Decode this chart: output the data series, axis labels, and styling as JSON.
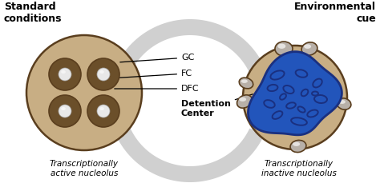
{
  "background_color": "#ffffff",
  "title_left": "Standard\nconditions",
  "title_right": "Environmental\ncue",
  "label_active": "Transcriptionally\nactive nucleolus",
  "label_inactive": "Transcriptionally\ninactive nucleolus",
  "gc_label": "GC",
  "fc_label": "FC",
  "dfc_label": "DFC",
  "detention_label": "Detention\nCenter",
  "outer_nucleolus_color": "#c8ae84",
  "outer_nucleolus_edge": "#5a3e1e",
  "dfc_color": "#6b4f2a",
  "fc_color": "#d4c4a0",
  "blue_fill": "#2255bb",
  "blue_dark": "#1a3080",
  "gray_blob_color": "#b8b0a8",
  "gray_blob_edge": "#6a5a4a",
  "arrow_color": "#d0d0d0",
  "arrow_edge": "#b0b0b0",
  "label_fontsize": 7.5,
  "title_fontsize": 9,
  "annotation_fontsize": 8
}
